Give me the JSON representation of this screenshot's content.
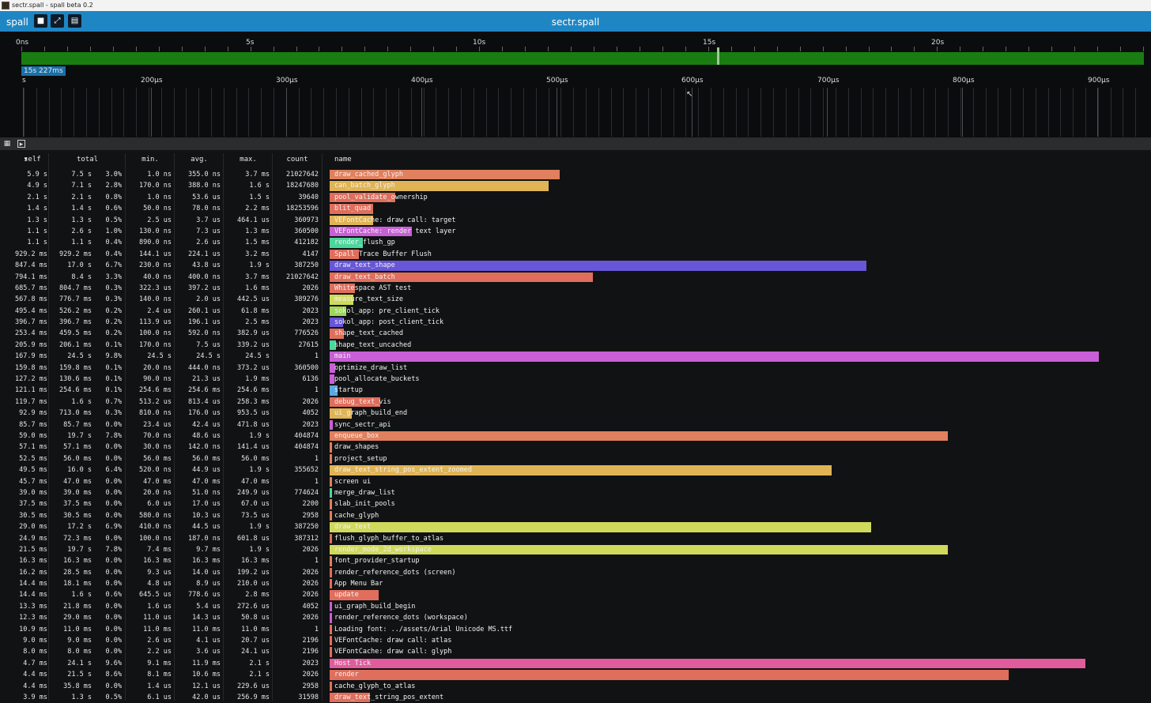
{
  "window_title": "sectr.spall - spall beta 0.2",
  "app": {
    "brand": "spall",
    "document_title": "sectr.spall"
  },
  "toolbar_icons": [
    "folder-icon",
    "compress-icon",
    "chart-icon"
  ],
  "timeline": {
    "labels": [
      "0ns",
      "5s",
      "10s",
      "15s",
      "20s"
    ],
    "cursor_badge": "15s 227ms",
    "zoom_labels": [
      "s",
      "200μs",
      "300μs",
      "400μs",
      "500μs",
      "600μs",
      "700μs",
      "800μs",
      "900μs"
    ],
    "bar_color": "#1a7d12"
  },
  "columns": [
    "self",
    "total",
    "min.",
    "avg.",
    "max.",
    "count",
    "name"
  ],
  "sort_column": "self",
  "rows": [
    {
      "self": "5.9 s",
      "total": "7.5 s",
      "pct": "3.0%",
      "min": "1.0 ns",
      "avg": "355.0 ns",
      "max": "3.7 ms",
      "count": "21027642",
      "name": "draw_cached_glyph",
      "bar": 0.21,
      "color": "#e0805e"
    },
    {
      "self": "4.9 s",
      "total": "7.1 s",
      "pct": "2.8%",
      "min": "170.0 ns",
      "avg": "388.0 ns",
      "max": "1.6 s",
      "count": "18247680",
      "name": "can_batch_glyph",
      "bar": 0.2,
      "color": "#e0b455"
    },
    {
      "self": "2.1 s",
      "total": "2.1 s",
      "pct": "0.8%",
      "min": "1.0 ns",
      "avg": "53.6 us",
      "max": "1.5 s",
      "count": "39640",
      "name": "pool_validate_ownership",
      "bar": 0.06,
      "color": "#e06e5c"
    },
    {
      "self": "1.4 s",
      "total": "1.4 s",
      "pct": "0.6%",
      "min": "50.0 ns",
      "avg": "78.0 ns",
      "max": "2.2 ms",
      "count": "18253596",
      "name": "blit_quad",
      "bar": 0.04,
      "color": "#e06e5c"
    },
    {
      "self": "1.3 s",
      "total": "1.3 s",
      "pct": "0.5%",
      "min": "2.5 us",
      "avg": "3.7 us",
      "max": "464.1 us",
      "count": "360973",
      "name": "VEFontCache: draw call: target",
      "bar": 0.04,
      "color": "#e0b455"
    },
    {
      "self": "1.1 s",
      "total": "2.6 s",
      "pct": "1.0%",
      "min": "130.0 ns",
      "avg": "7.3 us",
      "max": "1.3 ms",
      "count": "360500",
      "name": "VEFontCache: render text layer",
      "bar": 0.075,
      "color": "#c85fd6"
    },
    {
      "self": "1.1 s",
      "total": "1.1 s",
      "pct": "0.4%",
      "min": "890.0 ns",
      "avg": "2.6 us",
      "max": "1.5 ms",
      "count": "412182",
      "name": "render_flush_gp",
      "bar": 0.03,
      "color": "#4bd69c"
    },
    {
      "self": "929.2 ms",
      "total": "929.2 ms",
      "pct": "0.4%",
      "min": "144.1 us",
      "avg": "224.1 us",
      "max": "3.2 ms",
      "count": "4147",
      "name": "Spall Trace Buffer Flush",
      "bar": 0.027,
      "color": "#e06e5c"
    },
    {
      "self": "847.4 ms",
      "total": "17.0 s",
      "pct": "6.7%",
      "min": "230.0 ns",
      "avg": "43.8 us",
      "max": "1.9 s",
      "count": "387250",
      "name": "draw_text_shape",
      "bar": 0.49,
      "color": "#6756d6"
    },
    {
      "self": "794.1 ms",
      "total": "8.4 s",
      "pct": "3.3%",
      "min": "40.0 ns",
      "avg": "400.0 ns",
      "max": "3.7 ms",
      "count": "21027642",
      "name": "draw_text_batch",
      "bar": 0.24,
      "color": "#e06e5c"
    },
    {
      "self": "685.7 ms",
      "total": "804.7 ms",
      "pct": "0.3%",
      "min": "322.3 us",
      "avg": "397.2 us",
      "max": "1.6 ms",
      "count": "2026",
      "name": "Whitespace AST test",
      "bar": 0.023,
      "color": "#e06e5c"
    },
    {
      "self": "567.8 ms",
      "total": "776.7 ms",
      "pct": "0.3%",
      "min": "140.0 ns",
      "avg": "2.0 us",
      "max": "442.5 us",
      "count": "389276",
      "name": "measure_text_size",
      "bar": 0.022,
      "color": "#cfd95c"
    },
    {
      "self": "495.4 ms",
      "total": "526.2 ms",
      "pct": "0.2%",
      "min": "2.4 us",
      "avg": "260.1 us",
      "max": "61.8 ms",
      "count": "2023",
      "name": "sokol_app: pre_client_tick",
      "bar": 0.015,
      "color": "#9fd65c"
    },
    {
      "self": "396.7 ms",
      "total": "396.7 ms",
      "pct": "0.2%",
      "min": "113.9 us",
      "avg": "196.1 us",
      "max": "2.5 ms",
      "count": "2023",
      "name": "sokol_app: post_client_tick",
      "bar": 0.012,
      "color": "#6756d6"
    },
    {
      "self": "253.4 ms",
      "total": "459.5 ms",
      "pct": "0.2%",
      "min": "100.0 ns",
      "avg": "592.0 ns",
      "max": "382.9 us",
      "count": "776526",
      "name": "shape_text_cached",
      "bar": 0.013,
      "color": "#e06e5c"
    },
    {
      "self": "205.9 ms",
      "total": "206.1 ms",
      "pct": "0.1%",
      "min": "170.0 ns",
      "avg": "7.5 us",
      "max": "339.2 us",
      "count": "27615",
      "name": "shape_text_uncached",
      "bar": 0.006,
      "color": "#4bd69c"
    },
    {
      "self": "167.9 ms",
      "total": "24.5 s",
      "pct": "9.8%",
      "min": "24.5 s",
      "avg": "24.5 s",
      "max": "24.5 s",
      "count": "1",
      "name": "main",
      "bar": 0.702,
      "color": "#c85fd6"
    },
    {
      "self": "159.8 ms",
      "total": "159.8 ms",
      "pct": "0.1%",
      "min": "20.0 ns",
      "avg": "444.0 ns",
      "max": "373.2 us",
      "count": "360500",
      "name": "optimize_draw_list",
      "bar": 0.005,
      "color": "#c85fd6"
    },
    {
      "self": "127.2 ms",
      "total": "130.6 ms",
      "pct": "0.1%",
      "min": "90.0 ns",
      "avg": "21.3 us",
      "max": "1.9 ms",
      "count": "6136",
      "name": "pool_allocate_buckets",
      "bar": 0.004,
      "color": "#c85fd6"
    },
    {
      "self": "121.1 ms",
      "total": "254.6 ms",
      "pct": "0.1%",
      "min": "254.6 ms",
      "avg": "254.6 ms",
      "max": "254.6 ms",
      "count": "1",
      "name": "startup",
      "bar": 0.007,
      "color": "#5ca8e0"
    },
    {
      "self": "119.7 ms",
      "total": "1.6 s",
      "pct": "0.7%",
      "min": "513.2 us",
      "avg": "813.4 us",
      "max": "258.3 ms",
      "count": "2026",
      "name": "debug_text_vis",
      "bar": 0.046,
      "color": "#e06e5c"
    },
    {
      "self": "92.9 ms",
      "total": "713.0 ms",
      "pct": "0.3%",
      "min": "810.0 ns",
      "avg": "176.0 us",
      "max": "953.5 us",
      "count": "4052",
      "name": "ui_graph_build_end",
      "bar": 0.02,
      "color": "#e0b455"
    },
    {
      "self": "85.7 ms",
      "total": "85.7 ms",
      "pct": "0.0%",
      "min": "23.4 us",
      "avg": "42.4 us",
      "max": "471.8 us",
      "count": "2023",
      "name": "sync_sectr_api",
      "bar": 0.003,
      "color": "#c85fd6"
    },
    {
      "self": "59.0 ms",
      "total": "19.7 s",
      "pct": "7.8%",
      "min": "70.0 ns",
      "avg": "48.6 us",
      "max": "1.9 s",
      "count": "404874",
      "name": "enqueue_box",
      "bar": 0.564,
      "color": "#e0805e"
    },
    {
      "self": "57.1 ms",
      "total": "57.1 ms",
      "pct": "0.0%",
      "min": "30.0 ns",
      "avg": "142.0 ns",
      "max": "141.4 us",
      "count": "404874",
      "name": "draw_shapes",
      "bar": 0.002,
      "color": "#e0805e"
    },
    {
      "self": "52.5 ms",
      "total": "56.0 ms",
      "pct": "0.0%",
      "min": "56.0 ms",
      "avg": "56.0 ms",
      "max": "56.0 ms",
      "count": "1",
      "name": "project_setup",
      "bar": 0.002,
      "color": "#e0805e"
    },
    {
      "self": "49.5 ms",
      "total": "16.0 s",
      "pct": "6.4%",
      "min": "520.0 ns",
      "avg": "44.9 us",
      "max": "1.9 s",
      "count": "355652",
      "name": "draw_text_string_pos_extent_zoomed",
      "bar": 0.458,
      "color": "#e0b455"
    },
    {
      "self": "45.7 ms",
      "total": "47.0 ms",
      "pct": "0.0%",
      "min": "47.0 ms",
      "avg": "47.0 ms",
      "max": "47.0 ms",
      "count": "1",
      "name": "screen ui",
      "bar": 0.002,
      "color": "#e0805e"
    },
    {
      "self": "39.0 ms",
      "total": "39.0 ms",
      "pct": "0.0%",
      "min": "20.0 ns",
      "avg": "51.0 ns",
      "max": "249.9 us",
      "count": "774624",
      "name": "merge_draw_list",
      "bar": 0.002,
      "color": "#4bd69c"
    },
    {
      "self": "37.5 ms",
      "total": "37.5 ms",
      "pct": "0.0%",
      "min": "6.0 us",
      "avg": "17.0 us",
      "max": "67.0 us",
      "count": "2200",
      "name": "slab_init_pools",
      "bar": 0.002,
      "color": "#e0805e"
    },
    {
      "self": "30.5 ms",
      "total": "30.5 ms",
      "pct": "0.0%",
      "min": "580.0 ns",
      "avg": "10.3 us",
      "max": "73.5 us",
      "count": "2958",
      "name": "cache_glyph",
      "bar": 0.002,
      "color": "#e0805e"
    },
    {
      "self": "29.0 ms",
      "total": "17.2 s",
      "pct": "6.9%",
      "min": "410.0 ns",
      "avg": "44.5 us",
      "max": "1.9 s",
      "count": "387250",
      "name": "draw_text",
      "bar": 0.494,
      "color": "#cfd95c"
    },
    {
      "self": "24.9 ms",
      "total": "72.3 ms",
      "pct": "0.0%",
      "min": "100.0 ns",
      "avg": "187.0 ns",
      "max": "601.8 us",
      "count": "387312",
      "name": "flush_glyph_buffer_to_atlas",
      "bar": 0.002,
      "color": "#e06e5c"
    },
    {
      "self": "21.5 ms",
      "total": "19.7 s",
      "pct": "7.8%",
      "min": "7.4 ms",
      "avg": "9.7 ms",
      "max": "1.9 s",
      "count": "2026",
      "name": "render_mode_2d_workspace",
      "bar": 0.564,
      "color": "#cfd95c"
    },
    {
      "self": "16.3 ms",
      "total": "16.3 ms",
      "pct": "0.0%",
      "min": "16.3 ms",
      "avg": "16.3 ms",
      "max": "16.3 ms",
      "count": "1",
      "name": "font_provider_startup",
      "bar": 0.001,
      "color": "#e0805e"
    },
    {
      "self": "16.2 ms",
      "total": "28.5 ms",
      "pct": "0.0%",
      "min": "9.3 us",
      "avg": "14.0 us",
      "max": "199.2 us",
      "count": "2026",
      "name": "render_reference_dots (screen)",
      "bar": 0.001,
      "color": "#e06e5c"
    },
    {
      "self": "14.4 ms",
      "total": "18.1 ms",
      "pct": "0.0%",
      "min": "4.8 us",
      "avg": "8.9 us",
      "max": "210.0 us",
      "count": "2026",
      "name": "App Menu Bar",
      "bar": 0.001,
      "color": "#e06e5c"
    },
    {
      "self": "14.4 ms",
      "total": "1.6 s",
      "pct": "0.6%",
      "min": "645.5 us",
      "avg": "778.6 us",
      "max": "2.8 ms",
      "count": "2026",
      "name": "update",
      "bar": 0.045,
      "color": "#e06e5c"
    },
    {
      "self": "13.3 ms",
      "total": "21.8 ms",
      "pct": "0.0%",
      "min": "1.6 us",
      "avg": "5.4 us",
      "max": "272.6 us",
      "count": "4052",
      "name": "ui_graph_build_begin",
      "bar": 0.001,
      "color": "#c85fd6"
    },
    {
      "self": "12.3 ms",
      "total": "29.0 ms",
      "pct": "0.0%",
      "min": "11.0 us",
      "avg": "14.3 us",
      "max": "50.8 us",
      "count": "2026",
      "name": "render_reference_dots (workspace)",
      "bar": 0.001,
      "color": "#c85fd6"
    },
    {
      "self": "10.9 ms",
      "total": "11.0 ms",
      "pct": "0.0%",
      "min": "11.0 ms",
      "avg": "11.0 ms",
      "max": "11.0 ms",
      "count": "1",
      "name": "Loading font: ../assets/Arial Unicode MS.ttf",
      "bar": 0.001,
      "color": "#e06e5c"
    },
    {
      "self": "9.0 ms",
      "total": "9.0 ms",
      "pct": "0.0%",
      "min": "2.6 us",
      "avg": "4.1 us",
      "max": "20.7 us",
      "count": "2196",
      "name": "VEFontCache: draw call: atlas",
      "bar": 0.001,
      "color": "#e06e5c"
    },
    {
      "self": "8.0 ms",
      "total": "8.0 ms",
      "pct": "0.0%",
      "min": "2.2 us",
      "avg": "3.6 us",
      "max": "24.1 us",
      "count": "2196",
      "name": "VEFontCache: draw call: glyph",
      "bar": 0.001,
      "color": "#e06e5c"
    },
    {
      "self": "4.7 ms",
      "total": "24.1 s",
      "pct": "9.6%",
      "min": "9.1 ms",
      "avg": "11.9 ms",
      "max": "2.1 s",
      "count": "2023",
      "name": "Host Tick",
      "bar": 0.69,
      "color": "#e05c9c"
    },
    {
      "self": "4.4 ms",
      "total": "21.5 s",
      "pct": "8.6%",
      "min": "8.1 ms",
      "avg": "10.6 ms",
      "max": "2.1 s",
      "count": "2026",
      "name": "render",
      "bar": 0.62,
      "color": "#e06e5c"
    },
    {
      "self": "4.4 ms",
      "total": "35.8 ms",
      "pct": "0.0%",
      "min": "1.4 us",
      "avg": "12.1 us",
      "max": "229.6 us",
      "count": "2958",
      "name": "cache_glyph_to_atlas",
      "bar": 0.001,
      "color": "#e06e5c"
    },
    {
      "self": "3.9 ms",
      "total": "1.3 s",
      "pct": "0.5%",
      "min": "6.1 us",
      "avg": "42.0 us",
      "max": "256.9 ms",
      "count": "31598",
      "name": "draw_text_string_pos_extent",
      "bar": 0.037,
      "color": "#e06e5c"
    }
  ]
}
